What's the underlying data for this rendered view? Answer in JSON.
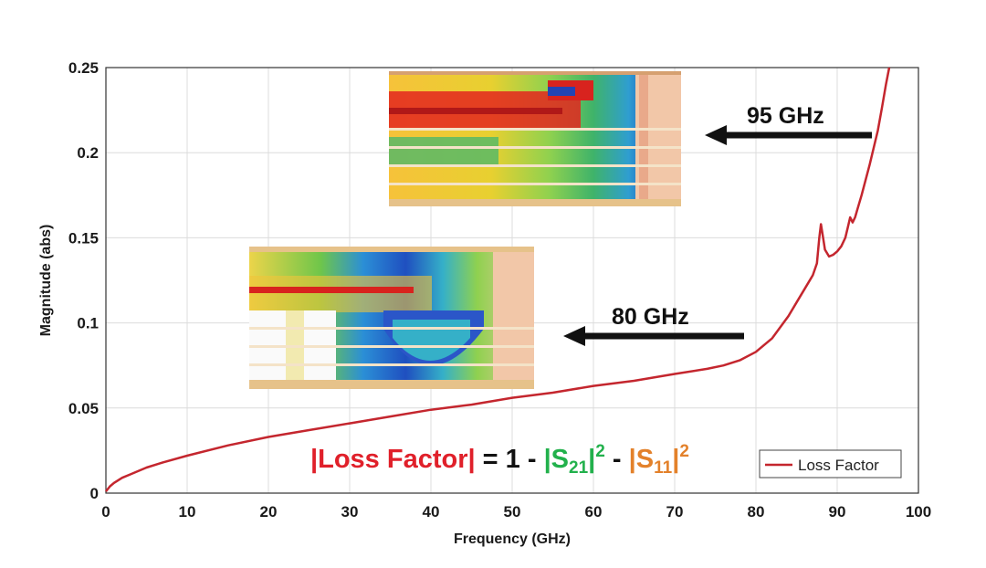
{
  "chart_data": {
    "type": "line",
    "xlabel": "Frequency (GHz)",
    "ylabel": "Magnitude (abs)",
    "xlim": [
      0,
      100
    ],
    "ylim": [
      0,
      0.25
    ],
    "xticks": [
      "0",
      "10",
      "20",
      "30",
      "40",
      "50",
      "60",
      "70",
      "80",
      "90",
      "100"
    ],
    "yticks": [
      "0",
      "0.05",
      "0.1",
      "0.15",
      "0.2",
      "0.25"
    ],
    "grid": true,
    "legend_position": "bottom-right",
    "series": [
      {
        "name": "Loss Factor",
        "color": "#c4262e",
        "x": [
          0,
          0.5,
          1,
          2,
          3,
          5,
          7,
          10,
          15,
          20,
          25,
          30,
          35,
          40,
          45,
          50,
          55,
          60,
          65,
          70,
          74,
          76,
          78,
          80,
          82,
          84,
          85,
          86,
          87,
          87.5,
          87.8,
          88.0,
          88.2,
          88.5,
          89,
          89.5,
          90,
          90.5,
          91,
          91.3,
          91.6,
          91.9,
          92.2,
          92.5,
          93,
          94,
          95,
          95.5,
          96,
          96.4
        ],
        "y": [
          0.001,
          0.004,
          0.006,
          0.009,
          0.011,
          0.015,
          0.018,
          0.022,
          0.028,
          0.033,
          0.037,
          0.041,
          0.045,
          0.049,
          0.052,
          0.056,
          0.059,
          0.063,
          0.066,
          0.07,
          0.073,
          0.075,
          0.078,
          0.083,
          0.091,
          0.104,
          0.112,
          0.12,
          0.128,
          0.135,
          0.15,
          0.158,
          0.152,
          0.143,
          0.139,
          0.14,
          0.142,
          0.145,
          0.15,
          0.156,
          0.162,
          0.159,
          0.162,
          0.167,
          0.175,
          0.193,
          0.213,
          0.226,
          0.24,
          0.25
        ]
      }
    ],
    "annotations": [
      {
        "text": "95 GHz"
      },
      {
        "text": "80 GHz"
      }
    ],
    "formula": {
      "lhs": "|Loss Factor|",
      "eq": " = 1 - ",
      "s21": "|S",
      "s21_sub": "21",
      "s21_end": "|",
      "s21_sup": "2",
      "minus": " - ",
      "s11": "|S",
      "s11_sub": "11",
      "s11_end": "|",
      "s11_sup": "2",
      "colors": {
        "lhs": "#e0202a",
        "eq": "#111111",
        "s21": "#22b14c",
        "s11": "#e3812a"
      }
    }
  }
}
